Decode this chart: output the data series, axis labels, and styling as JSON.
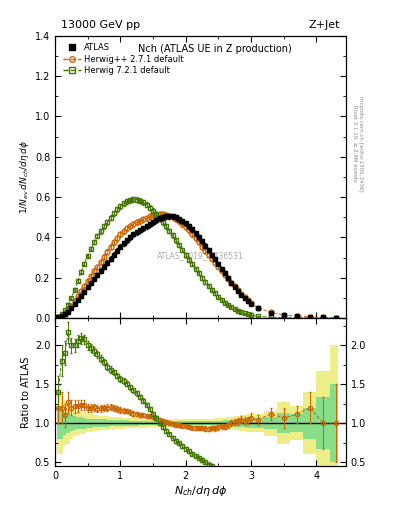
{
  "title_left": "13000 GeV pp",
  "title_right": "Z+Jet",
  "plot_title": "Nch (ATLAS UE in Z production)",
  "xlabel": "$N_{ch}/d\\eta\\,d\\phi$",
  "ylabel_main": "$1/N_{ev}\\,dN_{ch}/d\\eta\\,d\\phi$",
  "ylabel_ratio": "Ratio to ATLAS",
  "right_label_1": "Rivet 3.1.10, ≥ 2.8M events",
  "right_label_2": "mcplots.cern.ch [arXiv:1306.3436]",
  "watermark": "ATLAS_2019_I1736531",
  "atlas_x": [
    0.05,
    0.1,
    0.15,
    0.2,
    0.25,
    0.3,
    0.35,
    0.4,
    0.45,
    0.5,
    0.55,
    0.6,
    0.65,
    0.7,
    0.75,
    0.8,
    0.85,
    0.9,
    0.95,
    1.0,
    1.05,
    1.1,
    1.15,
    1.2,
    1.25,
    1.3,
    1.35,
    1.4,
    1.45,
    1.5,
    1.55,
    1.6,
    1.65,
    1.7,
    1.75,
    1.8,
    1.85,
    1.9,
    1.95,
    2.0,
    2.05,
    2.1,
    2.15,
    2.2,
    2.25,
    2.3,
    2.35,
    2.4,
    2.45,
    2.5,
    2.55,
    2.6,
    2.65,
    2.7,
    2.75,
    2.8,
    2.85,
    2.9,
    2.95,
    3.0,
    3.1,
    3.3,
    3.5,
    3.7,
    3.9,
    4.1,
    4.3
  ],
  "atlas_y": [
    0.005,
    0.01,
    0.02,
    0.03,
    0.05,
    0.07,
    0.09,
    0.11,
    0.13,
    0.155,
    0.175,
    0.195,
    0.215,
    0.235,
    0.255,
    0.275,
    0.295,
    0.315,
    0.335,
    0.355,
    0.37,
    0.385,
    0.4,
    0.415,
    0.425,
    0.435,
    0.445,
    0.455,
    0.465,
    0.475,
    0.485,
    0.495,
    0.5,
    0.505,
    0.505,
    0.505,
    0.5,
    0.49,
    0.48,
    0.47,
    0.455,
    0.44,
    0.42,
    0.4,
    0.38,
    0.36,
    0.34,
    0.315,
    0.295,
    0.27,
    0.245,
    0.225,
    0.2,
    0.175,
    0.155,
    0.135,
    0.115,
    0.1,
    0.085,
    0.07,
    0.05,
    0.025,
    0.015,
    0.009,
    0.005,
    0.003,
    0.002
  ],
  "atlas_yerr": [
    0.001,
    0.002,
    0.003,
    0.004,
    0.005,
    0.006,
    0.007,
    0.008,
    0.009,
    0.009,
    0.01,
    0.01,
    0.011,
    0.011,
    0.012,
    0.012,
    0.012,
    0.013,
    0.013,
    0.013,
    0.013,
    0.013,
    0.013,
    0.013,
    0.013,
    0.013,
    0.013,
    0.013,
    0.013,
    0.013,
    0.013,
    0.013,
    0.013,
    0.013,
    0.013,
    0.013,
    0.013,
    0.012,
    0.012,
    0.012,
    0.012,
    0.011,
    0.011,
    0.011,
    0.01,
    0.01,
    0.01,
    0.009,
    0.009,
    0.009,
    0.008,
    0.008,
    0.008,
    0.007,
    0.007,
    0.006,
    0.006,
    0.005,
    0.005,
    0.004,
    0.003,
    0.002,
    0.002,
    0.001,
    0.001,
    0.001,
    0.001
  ],
  "hpp_x": [
    0.05,
    0.1,
    0.15,
    0.2,
    0.25,
    0.3,
    0.35,
    0.4,
    0.45,
    0.5,
    0.55,
    0.6,
    0.65,
    0.7,
    0.75,
    0.8,
    0.85,
    0.9,
    0.95,
    1.0,
    1.05,
    1.1,
    1.15,
    1.2,
    1.25,
    1.3,
    1.35,
    1.4,
    1.45,
    1.5,
    1.55,
    1.6,
    1.65,
    1.7,
    1.75,
    1.8,
    1.85,
    1.9,
    1.95,
    2.0,
    2.05,
    2.1,
    2.15,
    2.2,
    2.25,
    2.3,
    2.35,
    2.4,
    2.45,
    2.5,
    2.55,
    2.6,
    2.65,
    2.7,
    2.75,
    2.8,
    2.85,
    2.9,
    2.95,
    3.0,
    3.1,
    3.3,
    3.5,
    3.7,
    3.9,
    4.1,
    4.3
  ],
  "hpp_y": [
    0.006,
    0.012,
    0.022,
    0.038,
    0.06,
    0.085,
    0.11,
    0.135,
    0.16,
    0.185,
    0.21,
    0.235,
    0.255,
    0.28,
    0.305,
    0.33,
    0.355,
    0.375,
    0.395,
    0.415,
    0.43,
    0.445,
    0.455,
    0.465,
    0.475,
    0.48,
    0.49,
    0.495,
    0.505,
    0.51,
    0.515,
    0.515,
    0.515,
    0.51,
    0.505,
    0.5,
    0.49,
    0.48,
    0.465,
    0.45,
    0.435,
    0.415,
    0.395,
    0.375,
    0.355,
    0.335,
    0.315,
    0.295,
    0.275,
    0.255,
    0.235,
    0.215,
    0.195,
    0.175,
    0.158,
    0.138,
    0.12,
    0.103,
    0.088,
    0.075,
    0.052,
    0.028,
    0.016,
    0.01,
    0.006,
    0.003,
    0.002
  ],
  "hpp_yerr": [
    0.001,
    0.002,
    0.003,
    0.004,
    0.005,
    0.006,
    0.007,
    0.007,
    0.008,
    0.008,
    0.009,
    0.009,
    0.01,
    0.01,
    0.011,
    0.011,
    0.011,
    0.012,
    0.012,
    0.012,
    0.012,
    0.012,
    0.012,
    0.012,
    0.012,
    0.012,
    0.012,
    0.012,
    0.012,
    0.012,
    0.012,
    0.012,
    0.012,
    0.012,
    0.012,
    0.012,
    0.012,
    0.012,
    0.011,
    0.011,
    0.011,
    0.011,
    0.011,
    0.01,
    0.01,
    0.01,
    0.009,
    0.009,
    0.009,
    0.008,
    0.008,
    0.008,
    0.007,
    0.007,
    0.006,
    0.006,
    0.005,
    0.005,
    0.004,
    0.004,
    0.003,
    0.002,
    0.002,
    0.001,
    0.001,
    0.001,
    0.001
  ],
  "h721_x": [
    0.05,
    0.1,
    0.15,
    0.2,
    0.25,
    0.3,
    0.35,
    0.4,
    0.45,
    0.5,
    0.55,
    0.6,
    0.65,
    0.7,
    0.75,
    0.8,
    0.85,
    0.9,
    0.95,
    1.0,
    1.05,
    1.1,
    1.15,
    1.2,
    1.25,
    1.3,
    1.35,
    1.4,
    1.45,
    1.5,
    1.55,
    1.6,
    1.65,
    1.7,
    1.75,
    1.8,
    1.85,
    1.9,
    1.95,
    2.0,
    2.05,
    2.1,
    2.15,
    2.2,
    2.25,
    2.3,
    2.35,
    2.4,
    2.45,
    2.5,
    2.55,
    2.6,
    2.65,
    2.7,
    2.75,
    2.8,
    2.85,
    2.9,
    2.95,
    3.0,
    3.1,
    3.3,
    3.5,
    3.7,
    3.9,
    4.1,
    4.3
  ],
  "h721_y": [
    0.007,
    0.018,
    0.038,
    0.065,
    0.1,
    0.14,
    0.185,
    0.23,
    0.27,
    0.31,
    0.345,
    0.375,
    0.405,
    0.43,
    0.455,
    0.475,
    0.498,
    0.52,
    0.54,
    0.555,
    0.57,
    0.58,
    0.585,
    0.59,
    0.588,
    0.582,
    0.574,
    0.562,
    0.548,
    0.532,
    0.515,
    0.496,
    0.476,
    0.455,
    0.432,
    0.41,
    0.386,
    0.362,
    0.338,
    0.314,
    0.29,
    0.268,
    0.245,
    0.222,
    0.2,
    0.179,
    0.159,
    0.14,
    0.122,
    0.106,
    0.091,
    0.077,
    0.065,
    0.054,
    0.044,
    0.036,
    0.029,
    0.023,
    0.018,
    0.014,
    0.009,
    0.004,
    0.002,
    0.001,
    0.0008,
    0.0005,
    0.0003
  ],
  "h721_yerr": [
    0.001,
    0.002,
    0.003,
    0.004,
    0.005,
    0.006,
    0.007,
    0.008,
    0.008,
    0.009,
    0.009,
    0.01,
    0.01,
    0.011,
    0.011,
    0.011,
    0.012,
    0.012,
    0.012,
    0.013,
    0.013,
    0.013,
    0.013,
    0.013,
    0.013,
    0.013,
    0.013,
    0.013,
    0.013,
    0.013,
    0.013,
    0.013,
    0.012,
    0.012,
    0.012,
    0.012,
    0.012,
    0.011,
    0.011,
    0.011,
    0.011,
    0.01,
    0.01,
    0.01,
    0.009,
    0.009,
    0.009,
    0.008,
    0.008,
    0.007,
    0.007,
    0.007,
    0.006,
    0.006,
    0.005,
    0.005,
    0.004,
    0.004,
    0.003,
    0.003,
    0.002,
    0.001,
    0.001,
    0.001,
    0.0005,
    0.0003,
    0.0002
  ],
  "atlas_color": "#000000",
  "hpp_color": "#cc6600",
  "h721_color": "#447700",
  "band_yellow": "#eeee88",
  "band_green": "#88dd88",
  "ylim_main": [
    0.0,
    1.4
  ],
  "ylim_ratio": [
    0.45,
    2.35
  ],
  "xlim": [
    0.0,
    4.45
  ],
  "yticks_main": [
    0.0,
    0.2,
    0.4,
    0.6,
    0.8,
    1.0,
    1.2,
    1.4
  ],
  "yticks_ratio": [
    0.5,
    1.0,
    1.5,
    2.0
  ],
  "xticks": [
    0,
    1,
    2,
    3,
    4
  ]
}
